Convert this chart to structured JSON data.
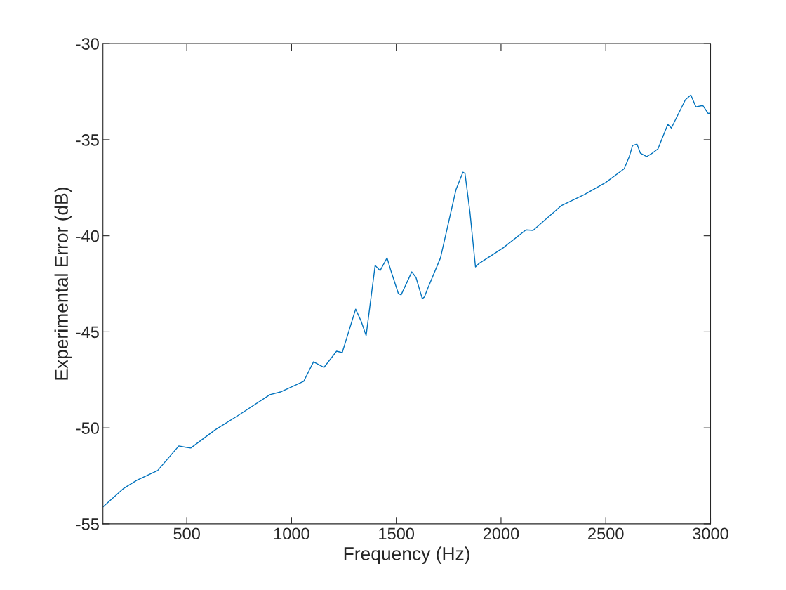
{
  "chart_data": {
    "type": "line",
    "xlabel": "Frequency (Hz)",
    "ylabel": "Experimental Error (dB)",
    "xlim": [
      100,
      3000
    ],
    "xticks": [
      500,
      1000,
      1500,
      2000,
      2500,
      3000
    ],
    "ylim": [
      -55,
      -30
    ],
    "yticks": [
      -55,
      -50,
      -45,
      -40,
      -35,
      -30
    ],
    "grid": false,
    "legend": false,
    "marker": "none",
    "line_style": "solid",
    "series": [
      {
        "color": "#0072bd",
        "x": [
          100,
          200,
          261,
          361,
          462,
          495,
          519,
          636,
          753,
          897,
          947,
          1058,
          1105,
          1155,
          1215,
          1242,
          1306,
          1332,
          1356,
          1399,
          1423,
          1456,
          1476,
          1510,
          1523,
          1574,
          1594,
          1624,
          1634,
          1651,
          1711,
          1785,
          1818,
          1828,
          1852,
          1878,
          1895,
          2009,
          2119,
          2153,
          2287,
          2397,
          2498,
          2588,
          2612,
          2628,
          2649,
          2665,
          2695,
          2722,
          2749,
          2796,
          2813,
          2880,
          2906,
          2930,
          2963,
          2990,
          3000
        ],
        "values": [
          -54.12,
          -53.14,
          -52.73,
          -52.22,
          -50.94,
          -51.01,
          -51.05,
          -50.1,
          -49.3,
          -48.27,
          -48.13,
          -47.58,
          -46.56,
          -46.85,
          -46.01,
          -46.08,
          -43.82,
          -44.44,
          -45.2,
          -41.55,
          -41.81,
          -41.15,
          -41.88,
          -43.01,
          -43.08,
          -41.88,
          -42.17,
          -43.27,
          -43.19,
          -42.72,
          -41.15,
          -37.6,
          -36.69,
          -36.76,
          -38.81,
          -41.62,
          -41.44,
          -40.64,
          -39.69,
          -39.72,
          -38.44,
          -37.86,
          -37.24,
          -36.51,
          -35.88,
          -35.3,
          -35.23,
          -35.7,
          -35.88,
          -35.7,
          -35.48,
          -34.2,
          -34.39,
          -32.92,
          -32.67,
          -33.29,
          -33.22,
          -33.65,
          -33.58
        ]
      }
    ]
  }
}
